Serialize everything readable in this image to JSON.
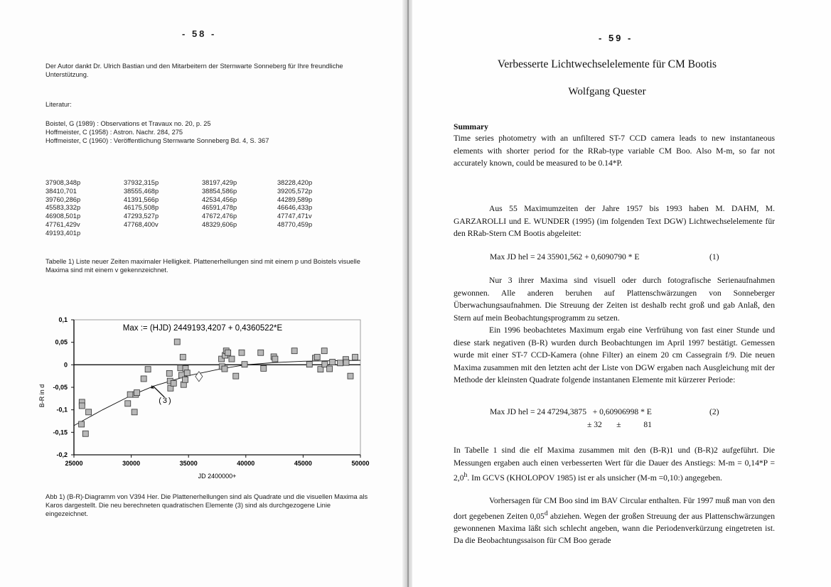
{
  "left_page": {
    "page_number": "- 58 -",
    "acknowledgement": "Der Autor dankt Dr. Ulrich Bastian und den Mitarbeitern der Sternwarte Sonneberg für Ihre freundliche Unterstützung.",
    "literature_heading": "Literatur:",
    "references": [
      "Boistel, G (1989) : Observations et Travaux no. 20, p. 25",
      "Hoffmeister, C (1958) : Astron. Nachr. 284, 275",
      "Hoffmeister, C (1960) : Veröffentlichung Sternwarte Sonneberg Bd. 4, S. 367"
    ],
    "table": [
      "37908,348p",
      "37932,315p",
      "38197,429p",
      "38228,420p",
      "38410,701",
      "38555,468p",
      "38854,586p",
      "39205,572p",
      "39760,286p",
      "41391,566p",
      "42534,456p",
      "44289,589p",
      "45583,332p",
      "46175,508p",
      "46591,478p",
      "46646,433p",
      "46908,501p",
      "47293,527p",
      "47672,476p",
      "47747,471v",
      "47761,429v",
      "47768,400v",
      "48329,606p",
      "48770,459p",
      "49193,401p"
    ],
    "table_caption": "Tabelle 1)  Liste neuer Zeiten maximaler Helligkeit. Plattenerhellungen sind mit einem p und Boistels visuelle Maxima sind mit einem v gekennzeichnet.",
    "figure_caption": "Abb 1)  (B-R)-Diagramm von V394 Her. Die Plattenerhellungen sind als Quadrate und die visuellen Maxima als Karos dargestellt. Die neu berechneten quadratischen Elemente (3) sind als durchgezogene Linie eingezeichnet."
  },
  "chart_data": {
    "type": "scatter",
    "annotation_title": "Max := (HJD) 2449193,4207 + 0,4360522*E",
    "xlabel": "JD 2400000+",
    "ylabel": "B-R in d",
    "xlim": [
      25000,
      50000
    ],
    "ylim": [
      -0.2,
      0.1
    ],
    "x_ticks": [
      "25000",
      "30000",
      "35000",
      "40000",
      "45000",
      "50000"
    ],
    "y_ticks": [
      "0,1",
      "0,05",
      "0",
      "-0,05",
      "-0,1",
      "-0,15",
      "-0,2"
    ],
    "curve_label": "(3)",
    "grid": false,
    "zero_line": true,
    "series": [
      {
        "marker": "square",
        "points": [
          [
            25700,
            -0.083
          ],
          [
            25700,
            -0.091
          ],
          [
            26280,
            -0.105
          ],
          [
            25660,
            -0.132
          ],
          [
            26010,
            -0.153
          ],
          [
            29910,
            -0.066
          ],
          [
            30390,
            -0.066
          ],
          [
            30490,
            -0.062
          ],
          [
            29700,
            -0.086
          ],
          [
            30280,
            -0.105
          ],
          [
            31090,
            -0.031
          ],
          [
            31460,
            -0.01
          ],
          [
            33330,
            -0.019
          ],
          [
            33390,
            -0.036
          ],
          [
            33430,
            -0.052
          ],
          [
            33700,
            -0.041
          ],
          [
            34010,
            0.051
          ],
          [
            34300,
            -0.007
          ],
          [
            34400,
            -0.023
          ],
          [
            34510,
            0.017
          ],
          [
            34570,
            -0.044
          ],
          [
            34740,
            -0.008
          ],
          [
            34710,
            -0.033
          ],
          [
            34880,
            -0.018
          ],
          [
            37880,
            0.013
          ],
          [
            37920,
            -0.004
          ],
          [
            38150,
            -0.009
          ],
          [
            38190,
            0.021
          ],
          [
            38290,
            0.031
          ],
          [
            38440,
            0.027
          ],
          [
            38770,
            0.013
          ],
          [
            39130,
            -0.025
          ],
          [
            39640,
            0.027
          ],
          [
            39890,
            0.001
          ],
          [
            41300,
            0.027
          ],
          [
            41550,
            -0.008
          ],
          [
            42440,
            0.018
          ],
          [
            42550,
            0.013
          ],
          [
            44240,
            0.031
          ],
          [
            45550,
            0.001
          ],
          [
            46060,
            0.015
          ],
          [
            46230,
            0.017
          ],
          [
            46520,
            -0.01
          ],
          [
            46850,
            0.031
          ],
          [
            46890,
            0.001
          ],
          [
            47310,
            -0.009
          ],
          [
            47560,
            0.006
          ],
          [
            48240,
            0.004
          ],
          [
            48720,
            0.012
          ],
          [
            48760,
            0.005
          ],
          [
            49130,
            -0.025
          ],
          [
            49540,
            0.017
          ]
        ]
      },
      {
        "marker": "diamond",
        "points": [
          [
            35910,
            -0.026
          ]
        ]
      }
    ],
    "curve": [
      [
        25000,
        -0.135
      ],
      [
        27500,
        -0.1
      ],
      [
        30000,
        -0.068
      ],
      [
        32000,
        -0.047
      ],
      [
        35000,
        -0.024
      ],
      [
        38000,
        -0.008
      ],
      [
        40000,
        0.0
      ],
      [
        42500,
        0.005
      ],
      [
        45000,
        0.008
      ],
      [
        50000,
        0.01
      ]
    ],
    "colors": {
      "marker_fill": "#b8b8b8",
      "marker_stroke": "#333333",
      "line": "#111111"
    }
  },
  "right_page": {
    "page_number": "- 59 -",
    "title": "Verbesserte Lichtwechselelemente für CM Bootis",
    "author": "Wolfgang Quester",
    "summary_heading": "Summary",
    "summary": "Time series photometry with an unfiltered ST-7 CCD camera leads to new instantaneous elements with shorter period for the RRab-type variable CM Boo. Also M-m, so far not accurately known, could be measured to be 0.14*P.",
    "para1": "Aus 55 Maximumzeiten der Jahre 1957 bis 1993 haben M. DAHM, M. GARZAROLLI und E. WUNDER (1995) (im folgenden Text DGW) Lichtwechselelemente für den RRab-Stern CM Bootis abgeleitet:",
    "eq1": "Max JD hel = 24 35901,562 + 0,6090790 * E",
    "eq1_num": "(1)",
    "para2": "Nur 3 ihrer Maxima sind visuell oder durch fotografische Serienaufnahmen gewonnen. Alle anderen beruhen auf Plattenschwärzungen von Sonneberger Überwachungsaufnahmen. Die Streuung der Zeiten ist deshalb recht groß und gab Anlaß, den Stern auf mein Beobachtungsprogramm zu setzen.",
    "para3": "Ein 1996 beobachtetes Maximum ergab eine Verfrühung von fast einer Stunde und diese stark negativen (B-R) wurden durch Beobachtungen im April 1997 bestätigt. Gemessen wurde mit einer ST-7 CCD-Kamera (ohne Filter) an einem 20 cm Cassegrain f/9. Die neuen Maxima zusammen mit den letzten acht der Liste von DGW ergaben nach Ausgleichung mit der Methode der kleinsten Quadrate folgende instantanen Elemente mit kürzerer Periode:",
    "eq2": "Max JD hel = 24 47294,3875   + 0,60906998 * E",
    "eq2_num": "(2)",
    "eq2_err": "± 32       ±           81",
    "para4_a": "In Tabelle 1 sind die elf Maxima zusammen mit den (B-R)1 und (B-R)2 aufgeführt. Die Messungen ergaben auch einen verbesserten Wert für die Dauer des Anstiegs: M-m = 0,14*P = 2,0",
    "para4_sup": "h",
    "para4_b": ".  Im GCVS (KHOLOPOV 1985) ist er als unsicher (M-m =0,10:) angegeben.",
    "para5_a": "Vorhersagen für CM Boo sind im BAV Circular enthalten. Für 1997 muß man von den dort gegebenen Zeiten 0,05",
    "para5_sup": "d",
    "para5_b": " abziehen. Wegen der großen Streuung der aus Plattenschwärzungen gewonnenen Maxima läßt sich schlecht angeben, wann die Periodenverkürzung eingetreten ist. Da die Beobachtungssaison für CM Boo gerade"
  }
}
